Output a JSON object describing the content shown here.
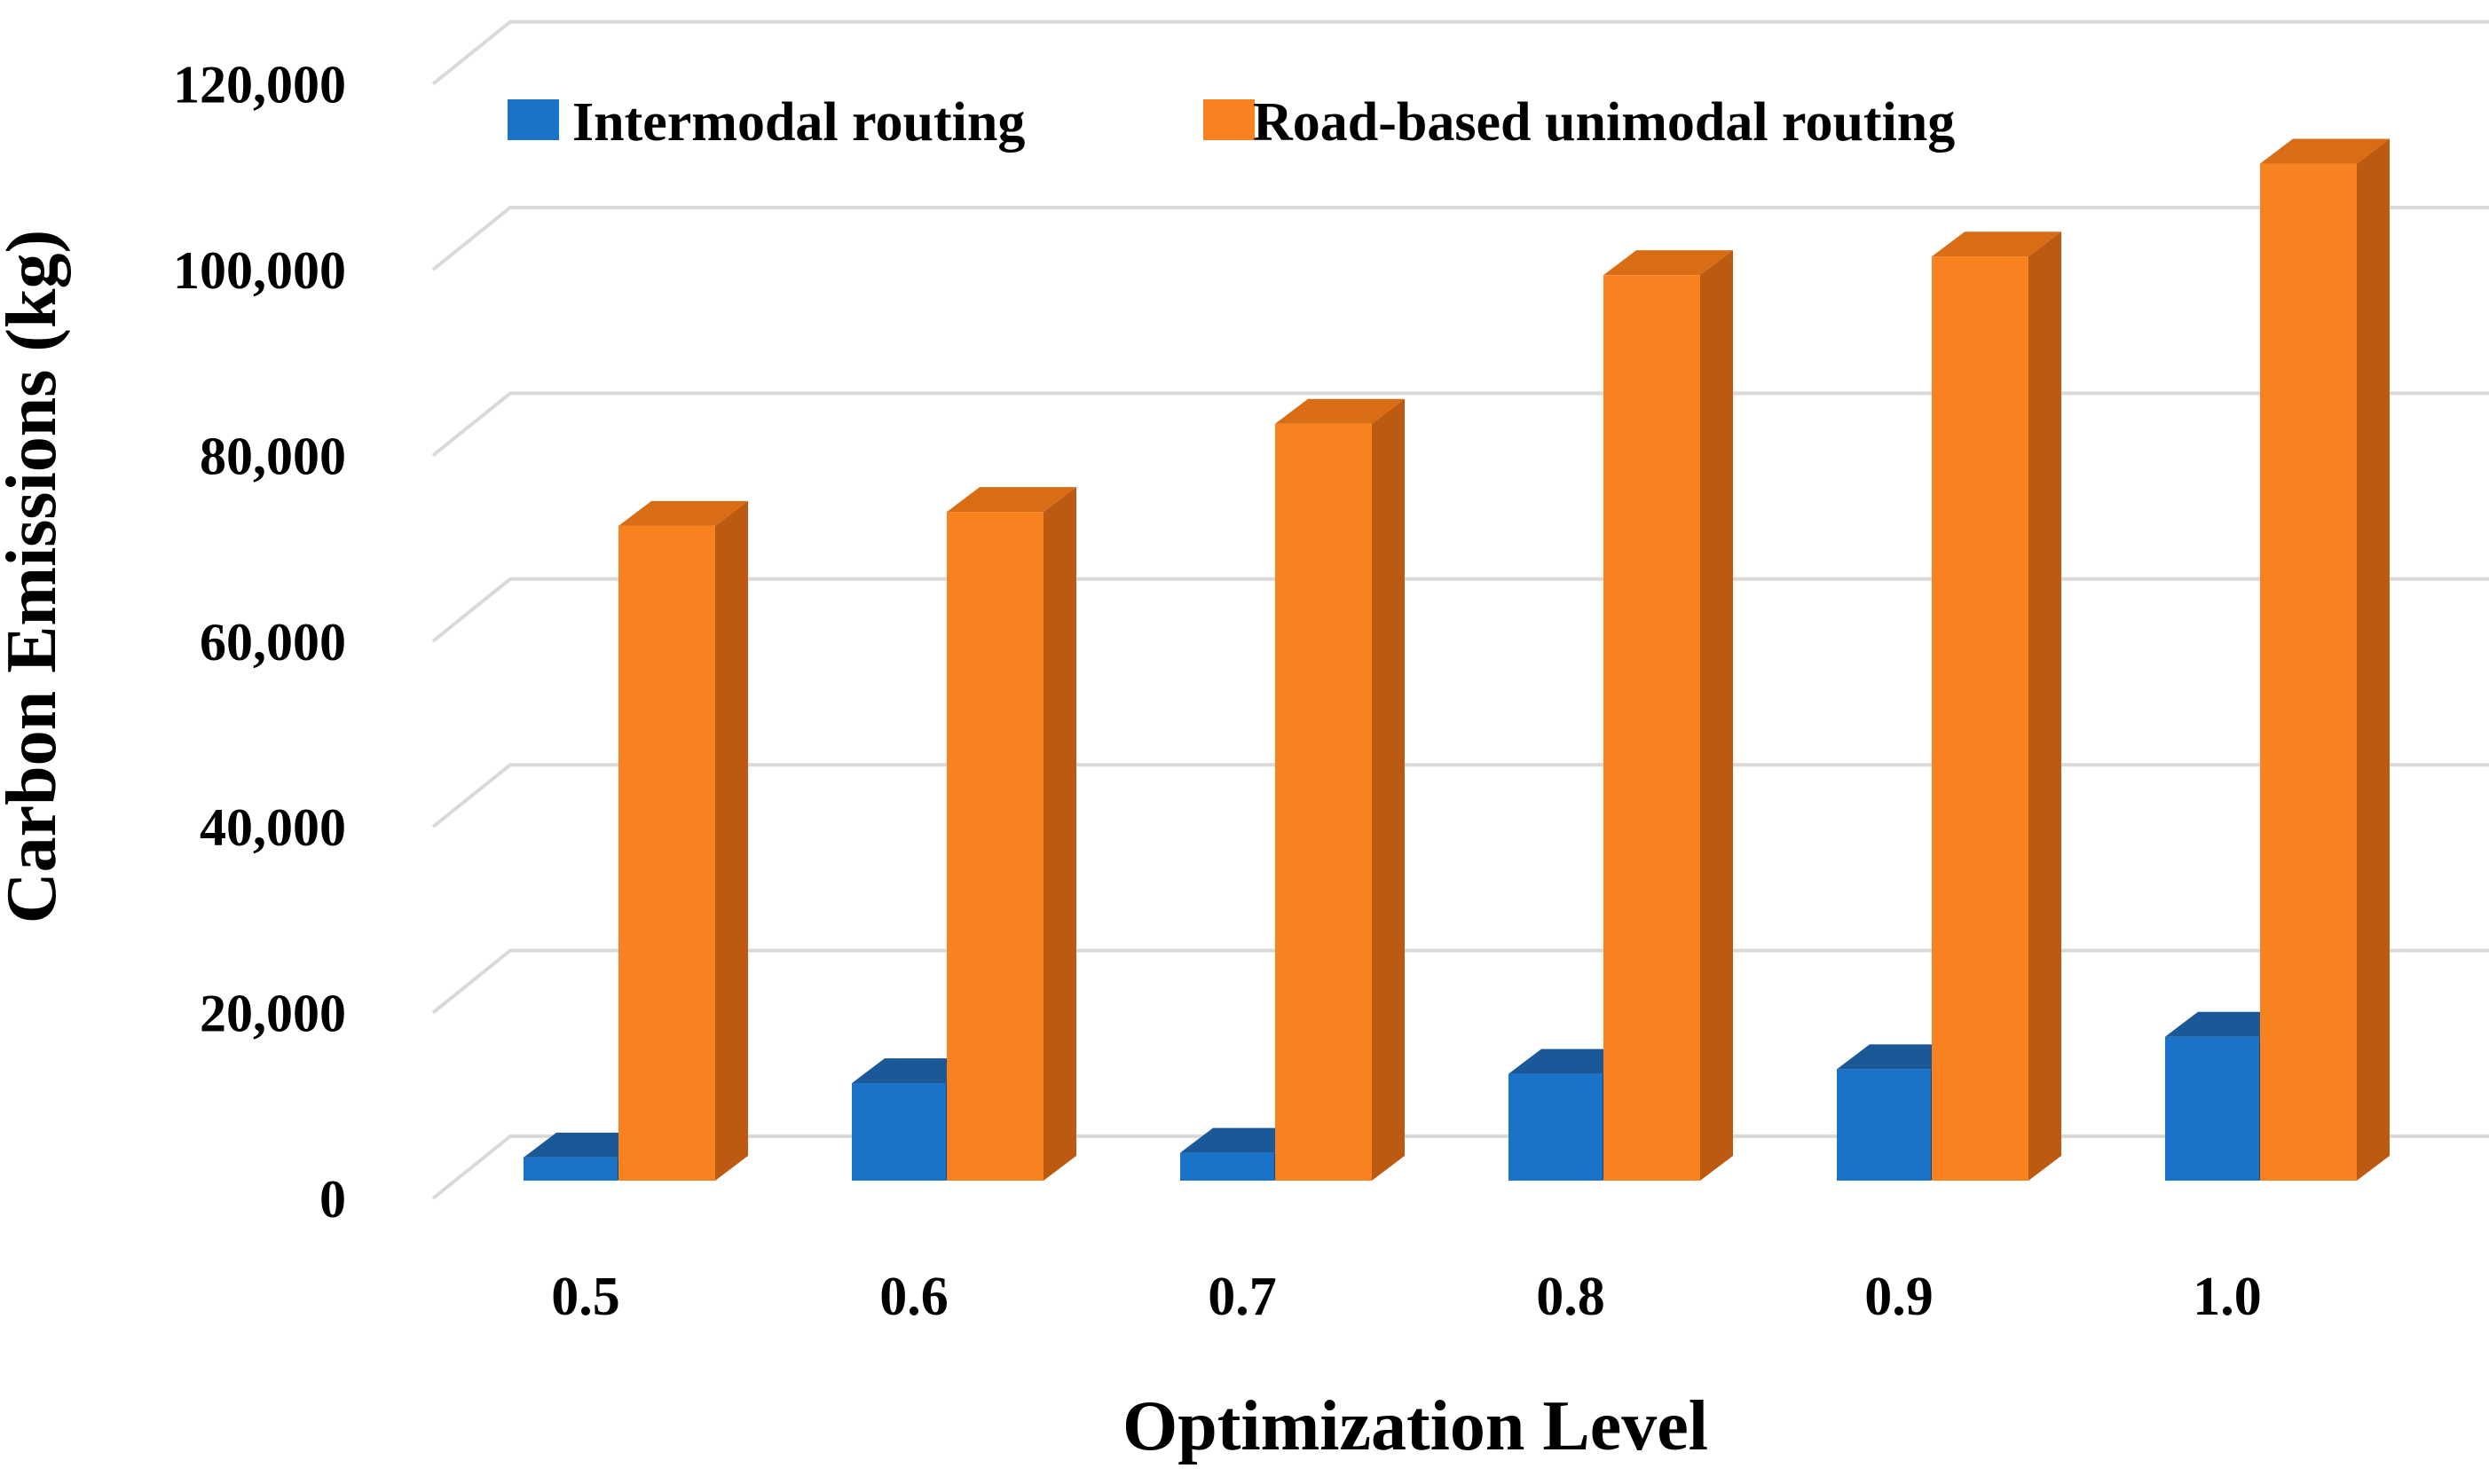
{
  "chart_data": {
    "type": "bar",
    "projection": "3d-oblique-columns",
    "title": "",
    "xlabel": "Optimization Level",
    "ylabel": "Carbon Emissions (kg)",
    "categories": [
      "0.5",
      "0.6",
      "0.7",
      "0.8",
      "0.9",
      "1.0"
    ],
    "series": [
      {
        "name": "Intermodal routing",
        "color": "#1A73C8",
        "top_color": "#1B5897",
        "side_color": "#134B80",
        "values": [
          2500,
          10500,
          3000,
          11500,
          12000,
          15500
        ]
      },
      {
        "name": "Road-based unimodal routing",
        "color": "#F8821F",
        "top_color": "#D96D15",
        "side_color": "#BC5A11",
        "values": [
          70500,
          72000,
          81500,
          97500,
          99500,
          109500
        ]
      }
    ],
    "ylim": [
      0,
      120000
    ],
    "ytick_step": 20000,
    "yticks": [
      {
        "value": 0,
        "label": "0"
      },
      {
        "value": 20000,
        "label": "20,000"
      },
      {
        "value": 40000,
        "label": "40,000"
      },
      {
        "value": 60000,
        "label": "60,000"
      },
      {
        "value": 80000,
        "label": "80,000"
      },
      {
        "value": 100000,
        "label": "100,000"
      },
      {
        "value": 120000,
        "label": "120,000"
      }
    ],
    "grid": "horizontal-gridlines-on-back-wall",
    "gridline_color": "#D9D9D9",
    "legend_position": "top-inside",
    "background_color": "#FFFFFF",
    "text_color": "#000000"
  },
  "legend": {
    "items": [
      {
        "label": "Intermodal routing",
        "color": "#1A73C8"
      },
      {
        "label": "Road-based unimodal routing",
        "color": "#F8821F"
      }
    ]
  },
  "axes": {
    "x_title": "Optimization Level",
    "y_title": "Carbon Emissions (kg)"
  }
}
